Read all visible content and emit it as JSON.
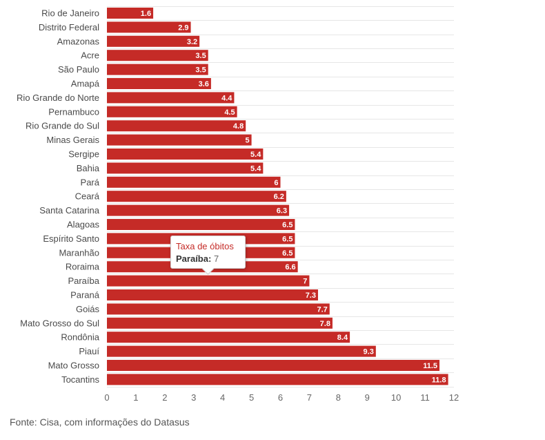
{
  "chart_data": {
    "type": "bar",
    "orientation": "horizontal",
    "categories": [
      "Rio de Janeiro",
      "Distrito Federal",
      "Amazonas",
      "Acre",
      "São Paulo",
      "Amapá",
      "Rio Grande do Norte",
      "Pernambuco",
      "Rio Grande do Sul",
      "Minas Gerais",
      "Sergipe",
      "Bahia",
      "Pará",
      "Ceará",
      "Santa Catarina",
      "Alagoas",
      "Espírito Santo",
      "Maranhão",
      "Roraima",
      "Paraíba",
      "Paraná",
      "Goiás",
      "Mato Grosso do Sul",
      "Rondônia",
      "Piauí",
      "Mato Grosso",
      "Tocantins"
    ],
    "values": [
      1.6,
      2.9,
      3.2,
      3.5,
      3.5,
      3.6,
      4.4,
      4.5,
      4.8,
      5,
      5.4,
      5.4,
      6,
      6.2,
      6.3,
      6.5,
      6.5,
      6.5,
      6.6,
      7,
      7.3,
      7.7,
      7.8,
      8.4,
      9.3,
      11.5,
      11.8
    ],
    "xlim": [
      0,
      12
    ],
    "x_ticks": [
      0,
      1,
      2,
      3,
      4,
      5,
      6,
      7,
      8,
      9,
      10,
      11,
      12
    ],
    "grid": true,
    "bar_color": "#c52b27",
    "data_labels": true
  },
  "tooltip": {
    "title": "Taxa de óbitos",
    "key": "Paraíba:",
    "value": "7"
  },
  "source": "Fonte: Cisa, com informações do Datasus"
}
